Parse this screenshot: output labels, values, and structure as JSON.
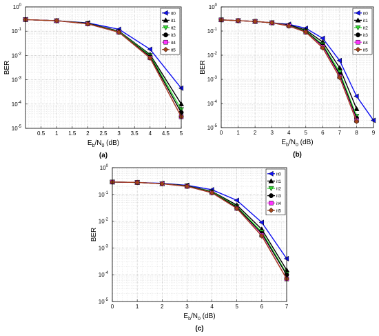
{
  "chart_data": [
    {
      "type": "line",
      "panel_label": "(a)",
      "xlabel": "E_b/N_0 (dB)",
      "xlabel_parts": {
        "main": "E",
        "sub1": "b",
        "mid": "/N",
        "sub2": "0",
        "tail": " (dB)"
      },
      "ylabel": "BER",
      "y_scale": "log",
      "xlim": [
        0,
        5
      ],
      "ylim": [
        1e-05,
        1
      ],
      "x_ticks": [
        0.5,
        1,
        1.5,
        2,
        2.5,
        3,
        3.5,
        4,
        4.5,
        5
      ],
      "x_tick_labels": [
        "0.5",
        "1",
        "1.5",
        "2",
        "2.5",
        "3",
        "3.5",
        "4",
        "4.5",
        "5"
      ],
      "y_ticks": [
        1e-05,
        0.0001,
        0.001,
        0.01,
        0.1,
        1
      ],
      "y_tick_labels": [
        [
          "10",
          "-5"
        ],
        [
          "10",
          "-4"
        ],
        [
          "10",
          "-3"
        ],
        [
          "10",
          "-2"
        ],
        [
          "10",
          "-1"
        ],
        [
          "10",
          "0"
        ]
      ],
      "grid": true,
      "legend_position": "top-right",
      "x": [
        0,
        1,
        2,
        3,
        4,
        5
      ],
      "series": [
        {
          "name": "it0",
          "color": "#1010f0",
          "marker": "triangle-left",
          "values": [
            0.3,
            0.27,
            0.22,
            0.12,
            0.018,
            0.00045
          ]
        },
        {
          "name": "it1",
          "color": "#000000",
          "marker": "triangle-up",
          "values": [
            0.3,
            0.27,
            0.21,
            0.1,
            0.011,
            0.0001
          ]
        },
        {
          "name": "it2",
          "color": "#33dd33",
          "marker": "triangle-down",
          "values": [
            0.3,
            0.27,
            0.21,
            0.095,
            0.01,
            6e-05
          ]
        },
        {
          "name": "it3",
          "color": "#000000",
          "marker": "circle",
          "values": [
            0.3,
            0.27,
            0.21,
            0.092,
            0.009,
            4.5e-05
          ]
        },
        {
          "name": "it4",
          "color": "#ff33ff",
          "marker": "square",
          "values": [
            0.3,
            0.27,
            0.2,
            0.09,
            0.008,
            3e-05
          ]
        },
        {
          "name": "it5",
          "color": "#a0421a",
          "marker": "diamond",
          "values": [
            0.3,
            0.27,
            0.2,
            0.09,
            0.0078,
            3e-05
          ]
        }
      ]
    },
    {
      "type": "line",
      "panel_label": "(b)",
      "xlabel": "E_b/N_0 (dB)",
      "xlabel_parts": {
        "main": "E",
        "sub1": "b",
        "mid": "/N",
        "sub2": "0",
        "tail": " (dB)"
      },
      "ylabel": "BER",
      "y_scale": "log",
      "xlim": [
        0,
        9
      ],
      "ylim": [
        1e-05,
        1
      ],
      "x_ticks": [
        0,
        1,
        2,
        3,
        4,
        5,
        6,
        7,
        8,
        9
      ],
      "x_tick_labels": [
        "0",
        "1",
        "2",
        "3",
        "4",
        "5",
        "6",
        "7",
        "8",
        "9"
      ],
      "y_ticks": [
        1e-05,
        0.0001,
        0.001,
        0.01,
        0.1,
        1
      ],
      "y_tick_labels": [
        [
          "10",
          "-5"
        ],
        [
          "10",
          "-4"
        ],
        [
          "10",
          "-3"
        ],
        [
          "10",
          "-2"
        ],
        [
          "10",
          "-1"
        ],
        [
          "10",
          "0"
        ]
      ],
      "grid": true,
      "legend_position": "top-right",
      "x": [
        0,
        1,
        2,
        3,
        4,
        5,
        6,
        7,
        8,
        9
      ],
      "series": [
        {
          "name": "it0",
          "color": "#1010f0",
          "marker": "triangle-left",
          "values": [
            0.29,
            0.27,
            0.25,
            0.22,
            0.19,
            0.13,
            0.05,
            0.006,
            0.0002,
            2e-05
          ]
        },
        {
          "name": "it1",
          "color": "#000000",
          "marker": "triangle-up",
          "values": [
            0.29,
            0.27,
            0.25,
            0.22,
            0.18,
            0.11,
            0.035,
            0.003,
            6e-05,
            null
          ]
        },
        {
          "name": "it2",
          "color": "#33dd33",
          "marker": "triangle-down",
          "values": [
            0.29,
            0.27,
            0.25,
            0.22,
            0.17,
            0.1,
            0.028,
            0.002,
            3e-05,
            null
          ]
        },
        {
          "name": "it3",
          "color": "#000000",
          "marker": "circle",
          "values": [
            0.29,
            0.27,
            0.25,
            0.22,
            0.17,
            0.095,
            0.025,
            0.0016,
            2.5e-05,
            null
          ]
        },
        {
          "name": "it4",
          "color": "#ff33ff",
          "marker": "square",
          "values": [
            0.29,
            0.27,
            0.25,
            0.22,
            0.165,
            0.09,
            0.022,
            0.0013,
            2e-05,
            null
          ]
        },
        {
          "name": "it5",
          "color": "#a0421a",
          "marker": "diamond",
          "values": [
            0.29,
            0.27,
            0.25,
            0.22,
            0.16,
            0.09,
            0.02,
            0.0012,
            1.8e-05,
            null
          ]
        }
      ]
    },
    {
      "type": "line",
      "panel_label": "(c)",
      "xlabel": "E_b/N_0 (dB)",
      "xlabel_parts": {
        "main": "E",
        "sub1": "b",
        "mid": "/N",
        "sub2": "0",
        "tail": " (dB)"
      },
      "ylabel": "BER",
      "y_scale": "log",
      "xlim": [
        0,
        7
      ],
      "ylim": [
        1e-05,
        1
      ],
      "x_ticks": [
        0,
        1,
        2,
        3,
        4,
        5,
        6,
        7
      ],
      "x_tick_labels": [
        "0",
        "1",
        "2",
        "3",
        "4",
        "5",
        "6",
        "7"
      ],
      "y_ticks": [
        1e-05,
        0.0001,
        0.001,
        0.01,
        0.1,
        1
      ],
      "y_tick_labels": [
        [
          "10",
          "-5"
        ],
        [
          "10",
          "-4"
        ],
        [
          "10",
          "-3"
        ],
        [
          "10",
          "-2"
        ],
        [
          "10",
          "-1"
        ],
        [
          "10",
          "0"
        ]
      ],
      "grid": true,
      "legend_position": "top-right",
      "x": [
        0,
        1,
        2,
        3,
        4,
        5,
        6,
        7
      ],
      "series": [
        {
          "name": "it0",
          "color": "#1010f0",
          "marker": "triangle-left",
          "values": [
            0.29,
            0.28,
            0.26,
            0.22,
            0.15,
            0.06,
            0.009,
            0.0004
          ]
        },
        {
          "name": "it1",
          "color": "#000000",
          "marker": "triangle-up",
          "values": [
            0.29,
            0.28,
            0.25,
            0.21,
            0.13,
            0.04,
            0.005,
            0.00015
          ]
        },
        {
          "name": "it2",
          "color": "#33dd33",
          "marker": "triangle-down",
          "values": [
            0.29,
            0.28,
            0.25,
            0.21,
            0.125,
            0.035,
            0.004,
            0.00011
          ]
        },
        {
          "name": "it3",
          "color": "#000000",
          "marker": "circle",
          "values": [
            0.29,
            0.28,
            0.25,
            0.21,
            0.12,
            0.033,
            0.0035,
            0.0001
          ]
        },
        {
          "name": "it4",
          "color": "#ff33ff",
          "marker": "square",
          "values": [
            0.29,
            0.28,
            0.25,
            0.2,
            0.115,
            0.03,
            0.003,
            7e-05
          ]
        },
        {
          "name": "it5",
          "color": "#a0421a",
          "marker": "diamond",
          "values": [
            0.29,
            0.28,
            0.25,
            0.2,
            0.115,
            0.03,
            0.0028,
            7e-05
          ]
        }
      ]
    }
  ]
}
